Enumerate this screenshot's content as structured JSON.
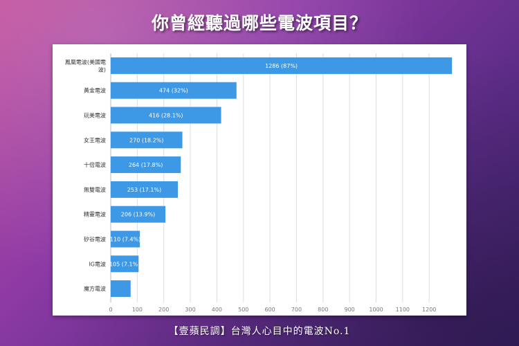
{
  "page": {
    "title": "你曾經聽過哪些電波項目？",
    "footer": "【壹蘋民調】台灣人心目中的電波No.1",
    "colors": {
      "bar": "#3d98e6",
      "background_top": "#c04a9a",
      "background_bottom": "#3a2168"
    }
  },
  "chart_data": {
    "type": "bar",
    "orientation": "horizontal",
    "categories": [
      "鳳凰電波(美國電波)",
      "黃金電波",
      "玩美電波",
      "女王電波",
      "十倍電波",
      "無雙電波",
      "精靈電波",
      "矽谷電波",
      "IG電波",
      "魔方電波"
    ],
    "category_lines": [
      [
        "鳳凰電波(美國電",
        "波)"
      ],
      [
        "黃金電波"
      ],
      [
        "玩美電波"
      ],
      [
        "女王電波"
      ],
      [
        "十倍電波"
      ],
      [
        "無雙電波"
      ],
      [
        "精靈電波"
      ],
      [
        "矽谷電波"
      ],
      [
        "IG電波"
      ],
      [
        "魔方電波"
      ]
    ],
    "values": [
      1286,
      474,
      416,
      270,
      264,
      253,
      206,
      110,
      105,
      75
    ],
    "data_labels": [
      "1286 (87%)",
      "474 (32%)",
      "416 (28.1%)",
      "270 (18.2%)",
      "264 (17.8%)",
      "253 (17.1%)",
      "206 (13.9%)",
      "110 (7.4%)",
      "105 (7.1%)",
      ""
    ],
    "xticks": [
      0,
      100,
      200,
      300,
      400,
      500,
      600,
      700,
      800,
      900,
      1000,
      1100,
      1200
    ],
    "xlim": [
      0,
      1300
    ],
    "grid": true,
    "title": "",
    "xlabel": "",
    "ylabel": ""
  }
}
